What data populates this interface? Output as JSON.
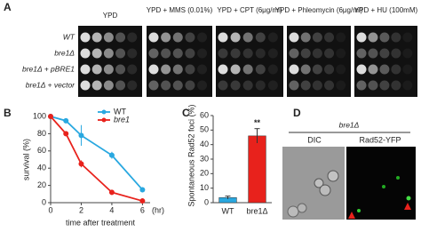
{
  "panels": {
    "A": {
      "label": "A",
      "columns": [
        "YPD",
        "YPD + MMS (0.01%)",
        "YPD + CPT (6μg/ml)",
        "YPD + Phleomycin (6μg/ml)",
        "YPD + HU (100mM)"
      ],
      "rows": [
        "WT",
        "bre1Δ",
        "bre1Δ + pBRE1",
        "bre1Δ + vector"
      ]
    },
    "D": {
      "label": "D",
      "strain": "bre1Δ",
      "columns": [
        "DIC",
        "Rad52-YFP"
      ]
    }
  },
  "chart_data": [
    {
      "panel": "B",
      "type": "line",
      "xlabel": "time after treatment",
      "x_unit": "(hr)",
      "ylabel": "survival (%)",
      "x": [
        0,
        1,
        2,
        4,
        6
      ],
      "xlim": [
        0,
        6.5
      ],
      "xticks": [
        0,
        2,
        4,
        6
      ],
      "ylim": [
        0,
        100
      ],
      "yticks": [
        0,
        20,
        40,
        60,
        80,
        100
      ],
      "legend": "upper right",
      "series": [
        {
          "name": "WT",
          "color": "#29a8e0",
          "values": [
            100,
            95,
            78,
            55,
            15
          ],
          "errors": [
            0,
            3,
            12,
            4,
            3
          ]
        },
        {
          "name": "bre1",
          "color": "#e8221c",
          "values": [
            100,
            80,
            45,
            12,
            2
          ],
          "errors": [
            0,
            3,
            4,
            3,
            1
          ]
        }
      ]
    },
    {
      "panel": "C",
      "type": "bar",
      "ylabel": "Spontaneous Rad52 foci (%)",
      "categories": [
        "WT",
        "bre1Δ"
      ],
      "values": [
        3.5,
        46
      ],
      "errors": [
        1,
        5
      ],
      "colors": [
        "#29a8e0",
        "#e8221c"
      ],
      "ylim": [
        0,
        60
      ],
      "yticks": [
        0,
        10,
        20,
        30,
        40,
        50,
        60
      ],
      "annotation": {
        "text": "**",
        "index": 1
      }
    }
  ]
}
